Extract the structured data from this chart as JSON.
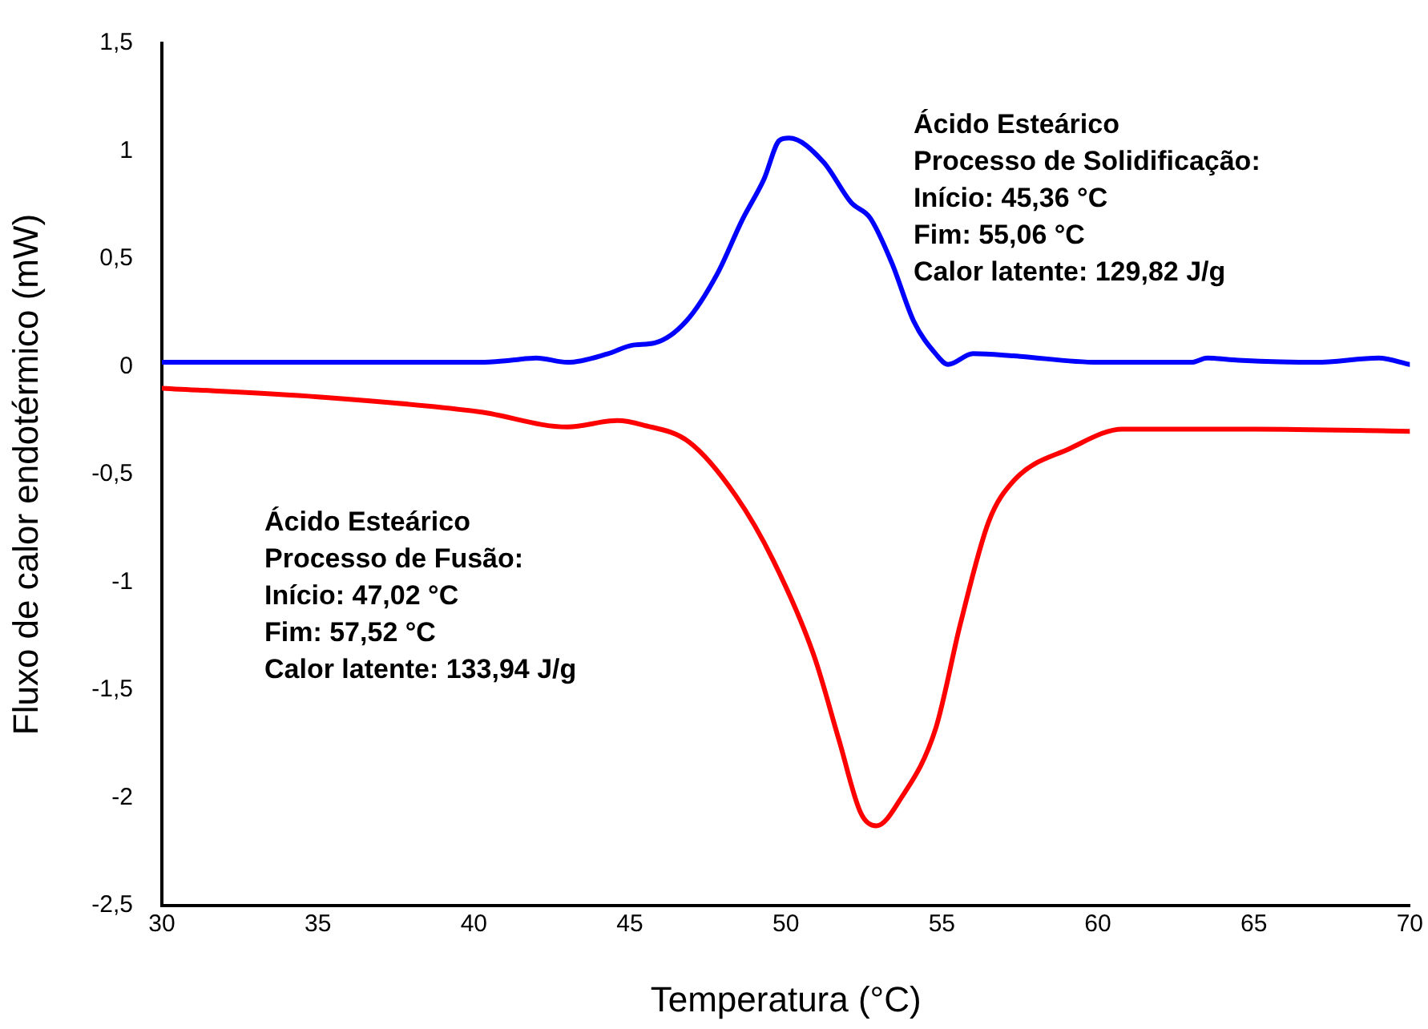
{
  "chart_data": {
    "type": "line",
    "xlabel": "Temperatura (°C)",
    "ylabel": "Fluxo de calor endotérmico (mW)",
    "xlim": [
      30,
      70
    ],
    "xticks": [
      30,
      35,
      40,
      45,
      50,
      55,
      60,
      65,
      70
    ],
    "ylim": [
      -2.5,
      1.5
    ],
    "yticks": [
      {
        "value": -2.5,
        "label": "-2,5"
      },
      -2,
      {
        "value": -1.5,
        "label": "-1,5"
      },
      -1,
      {
        "value": -0.5,
        "label": "-0,5"
      },
      0,
      {
        "value": 0.5,
        "label": "0,5"
      },
      1,
      {
        "value": 1.5,
        "label": "1,5"
      }
    ],
    "grid": false,
    "legend": false,
    "marker": "none",
    "line_style": "solid",
    "series": [
      {
        "color": "#0000ff",
        "x": [
          30,
          35,
          40.2,
          41.2,
          42,
          43,
          44.3,
          45.1,
          45.8,
          46.8,
          47.8,
          48.6,
          49.3,
          49.8,
          50.1,
          51.2,
          52.1,
          52.7,
          53.4,
          54.1,
          54.8,
          55.2,
          56,
          57.3,
          60,
          63,
          63.5,
          64.5,
          67,
          69,
          70
        ],
        "values": [
          0.02,
          0.02,
          0.02,
          0.03,
          0.04,
          0.02,
          0.06,
          0.1,
          0.11,
          0.21,
          0.43,
          0.68,
          0.87,
          1.05,
          1.06,
          0.95,
          0.76,
          0.69,
          0.48,
          0.21,
          0.06,
          0.01,
          0.06,
          0.05,
          0.02,
          0.02,
          0.04,
          0.03,
          0.02,
          0.04,
          0.01
        ]
      },
      {
        "color": "#ff0000",
        "x": [
          30,
          35,
          40.2,
          43,
          44.6,
          45.4,
          46.9,
          48.4,
          49.6,
          50.9,
          51.7,
          52.4,
          52.9,
          53.7,
          54.8,
          55.6,
          56.5,
          57.3,
          59.1,
          60.8,
          65,
          70
        ],
        "values": [
          -0.1,
          -0.14,
          -0.21,
          -0.28,
          -0.25,
          -0.27,
          -0.35,
          -0.6,
          -0.9,
          -1.34,
          -1.73,
          -2.07,
          -2.13,
          -2,
          -1.68,
          -1.19,
          -0.72,
          -0.53,
          -0.38,
          -0.29,
          -0.29,
          -0.3
        ]
      }
    ],
    "annotations": [
      "Ácido Esteárico\nProcesso de Solidificação:\nInício: 45,36 °C\nFim: 55,06 °C\nCalor latente: 129,82 J/g",
      "Ácido Esteárico\nProcesso de Fusão:\nInício: 47,02 °C\nFim: 57,52 °C\nCalor latente: 133,94 J/g"
    ]
  }
}
